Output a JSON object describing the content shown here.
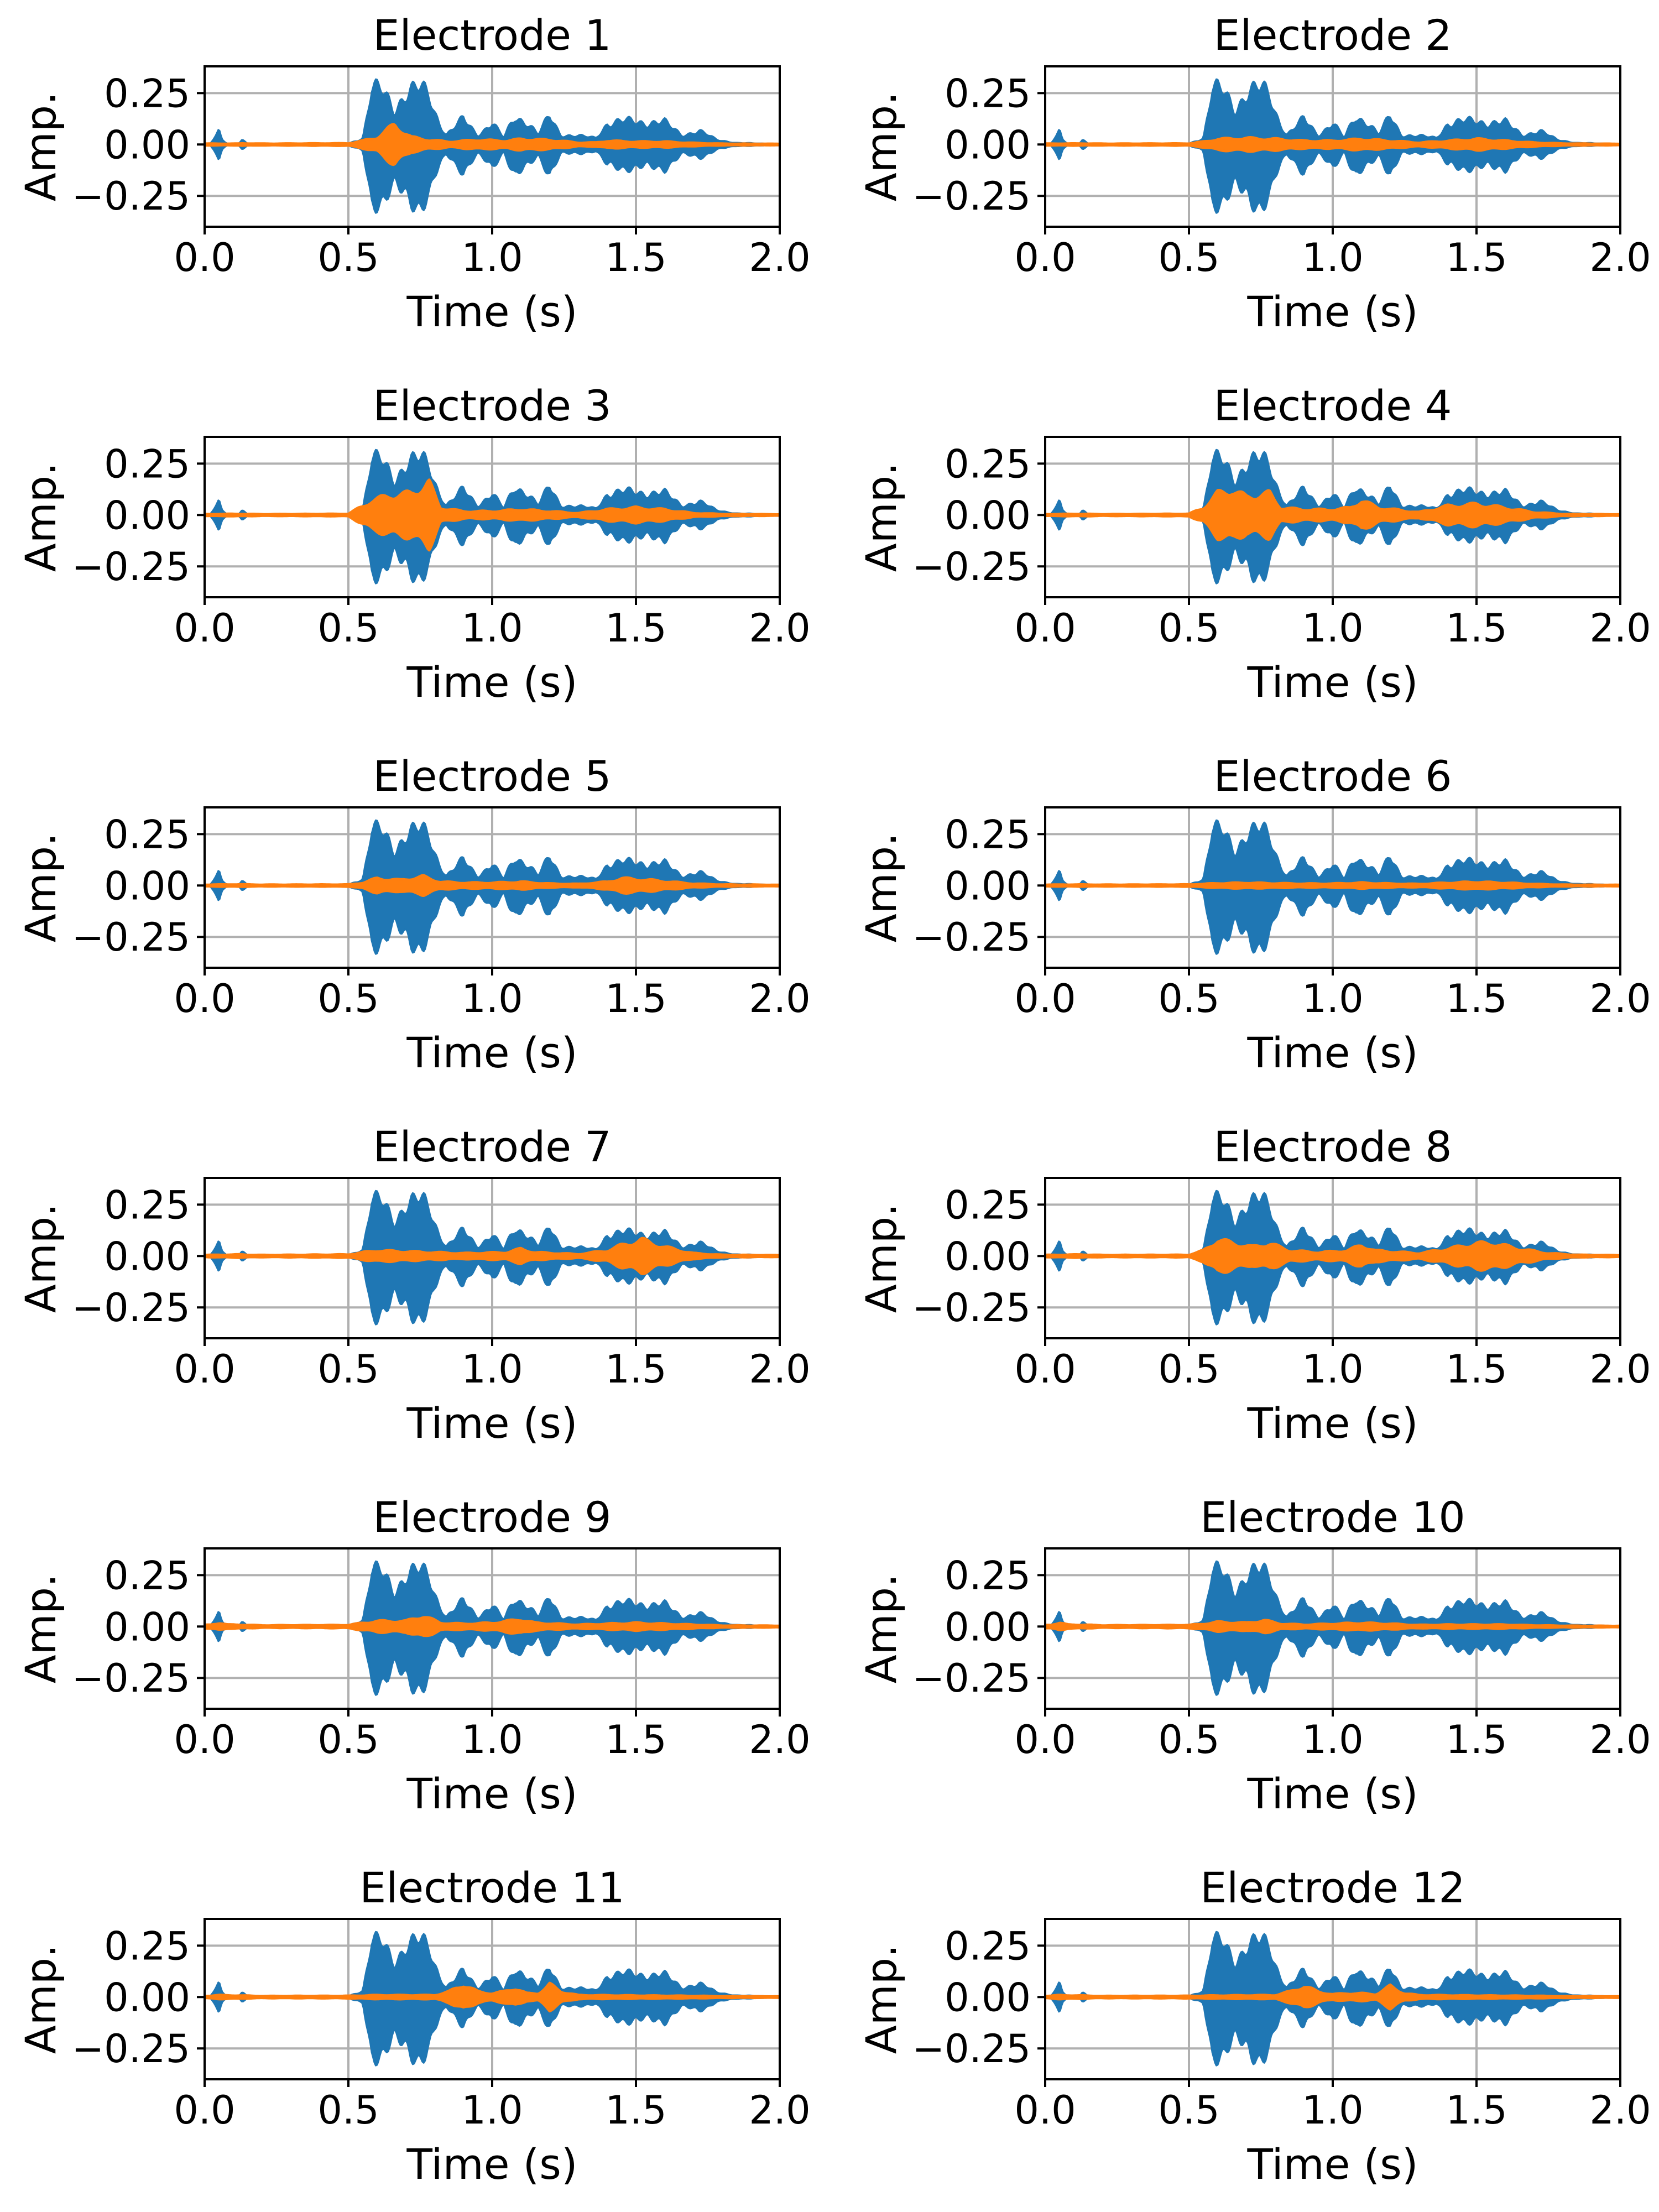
{
  "figure": {
    "colors": {
      "speech": "#1f77b4",
      "electrode": "#ff7f0e",
      "grid": "#b0b0b0",
      "axis": "#000000"
    }
  },
  "chart_data": {
    "type": "line",
    "layout": "6x2 grid of subplots",
    "shared_axes": {
      "xlabel": "Time (s)",
      "ylabel": "Amp.",
      "xlim": [
        0,
        2
      ],
      "ylim": [
        -0.4,
        0.38
      ],
      "xticks": [
        0,
        0.5,
        1,
        1.5,
        2
      ],
      "xtick_labels": [
        "0.0",
        "0.5",
        "1.0",
        "1.5",
        "2.0"
      ],
      "yticks": [
        0.25,
        0,
        -0.25
      ],
      "ytick_labels": [
        "0.25",
        "0.00",
        "−0.25"
      ],
      "grid": true
    },
    "speech_envelope": {
      "t": [
        0,
        0.02,
        0.05,
        0.06,
        0.08,
        0.1,
        0.12,
        0.13,
        0.15,
        0.3,
        0.5,
        0.55,
        0.58,
        0.62,
        0.66,
        0.7,
        0.74,
        0.78,
        0.8,
        0.84,
        0.9,
        0.95,
        1.0,
        1.04,
        1.08,
        1.12,
        1.16,
        1.2,
        1.24,
        1.3,
        1.36,
        1.4,
        1.5,
        1.6,
        1.66,
        1.72,
        1.78,
        1.85,
        2.0
      ],
      "pos": [
        0.004,
        0.005,
        0.08,
        0.03,
        0.005,
        0.006,
        0.01,
        0.03,
        0.005,
        0.005,
        0.006,
        0.04,
        0.33,
        0.31,
        0.22,
        0.32,
        0.33,
        0.3,
        0.2,
        0.06,
        0.15,
        0.06,
        0.13,
        0.04,
        0.17,
        0.14,
        0.06,
        0.17,
        0.06,
        0.05,
        0.04,
        0.13,
        0.14,
        0.13,
        0.06,
        0.08,
        0.03,
        0.01,
        0.004
      ],
      "neg": [
        -0.004,
        -0.005,
        -0.08,
        -0.03,
        -0.005,
        -0.006,
        -0.01,
        -0.03,
        -0.005,
        -0.005,
        -0.006,
        -0.04,
        -0.35,
        -0.32,
        -0.25,
        -0.33,
        -0.36,
        -0.3,
        -0.2,
        -0.06,
        -0.16,
        -0.06,
        -0.14,
        -0.04,
        -0.2,
        -0.14,
        -0.06,
        -0.18,
        -0.06,
        -0.05,
        -0.04,
        -0.13,
        -0.14,
        -0.14,
        -0.06,
        -0.08,
        -0.03,
        -0.01,
        -0.004
      ]
    },
    "subplots": [
      {
        "title": "Electrode 1",
        "t": [
          0,
          0.12,
          0.13,
          0.2,
          0.5,
          0.55,
          0.6,
          0.66,
          0.72,
          0.78,
          0.85,
          0.95,
          1.05,
          1.1,
          1.2,
          1.3,
          1.36,
          1.4,
          1.5,
          1.6,
          1.7,
          1.8,
          2.0
        ],
        "amp": [
          0.004,
          0.004,
          0.006,
          0.004,
          0.006,
          0.02,
          0.04,
          0.11,
          0.04,
          0.025,
          0.015,
          0.025,
          0.02,
          0.03,
          0.025,
          0.01,
          0.01,
          0.02,
          0.015,
          0.015,
          0.008,
          0.004,
          0.003
        ]
      },
      {
        "title": "Electrode 2",
        "t": [
          0,
          0.12,
          0.2,
          0.5,
          0.55,
          0.6,
          0.7,
          0.8,
          0.9,
          1.0,
          1.1,
          1.2,
          1.3,
          1.4,
          1.5,
          1.6,
          1.7,
          1.8,
          2.0
        ],
        "amp": [
          0.004,
          0.005,
          0.004,
          0.005,
          0.015,
          0.03,
          0.035,
          0.03,
          0.02,
          0.02,
          0.03,
          0.02,
          0.01,
          0.02,
          0.03,
          0.02,
          0.01,
          0.005,
          0.003
        ]
      },
      {
        "title": "Electrode 3",
        "t": [
          0,
          0.12,
          0.2,
          0.5,
          0.55,
          0.58,
          0.65,
          0.72,
          0.78,
          0.82,
          0.9,
          1.0,
          1.1,
          1.2,
          1.3,
          1.4,
          1.5,
          1.6,
          1.7,
          1.8,
          2.0
        ],
        "amp": [
          0.004,
          0.006,
          0.004,
          0.006,
          0.05,
          0.08,
          0.11,
          0.12,
          0.18,
          0.04,
          0.02,
          0.02,
          0.03,
          0.02,
          0.01,
          0.03,
          0.04,
          0.03,
          0.01,
          0.005,
          0.003
        ]
      },
      {
        "title": "Electrode 4",
        "t": [
          0,
          0.12,
          0.2,
          0.5,
          0.55,
          0.6,
          0.65,
          0.7,
          0.78,
          0.82,
          0.9,
          1.0,
          1.06,
          1.1,
          1.16,
          1.3,
          1.4,
          1.5,
          1.6,
          1.7,
          1.8,
          2.0
        ],
        "amp": [
          0.004,
          0.006,
          0.004,
          0.006,
          0.04,
          0.12,
          0.14,
          0.1,
          0.12,
          0.04,
          0.03,
          0.03,
          0.04,
          0.08,
          0.04,
          0.015,
          0.05,
          0.06,
          0.04,
          0.015,
          0.005,
          0.003
        ]
      },
      {
        "title": "Electrode 5",
        "t": [
          0,
          0.12,
          0.2,
          0.5,
          0.55,
          0.6,
          0.68,
          0.76,
          0.82,
          0.9,
          1.0,
          1.1,
          1.2,
          1.3,
          1.4,
          1.45,
          1.55,
          1.7,
          1.8,
          2.0
        ],
        "amp": [
          0.004,
          0.006,
          0.004,
          0.005,
          0.015,
          0.04,
          0.03,
          0.05,
          0.02,
          0.015,
          0.015,
          0.02,
          0.01,
          0.008,
          0.02,
          0.04,
          0.03,
          0.01,
          0.005,
          0.003
        ]
      },
      {
        "title": "Electrode 6",
        "t": [
          0,
          0.12,
          0.2,
          0.5,
          0.6,
          0.7,
          0.8,
          0.9,
          1.0,
          1.1,
          1.2,
          1.3,
          1.4,
          1.5,
          1.6,
          1.7,
          1.8,
          2.0
        ],
        "amp": [
          0.004,
          0.005,
          0.004,
          0.005,
          0.012,
          0.015,
          0.012,
          0.01,
          0.01,
          0.015,
          0.01,
          0.008,
          0.015,
          0.02,
          0.015,
          0.008,
          0.004,
          0.003
        ]
      },
      {
        "title": "Electrode 7",
        "t": [
          0,
          0.12,
          0.2,
          0.5,
          0.55,
          0.6,
          0.7,
          0.8,
          0.9,
          1.05,
          1.1,
          1.15,
          1.3,
          1.4,
          1.45,
          1.52,
          1.6,
          1.7,
          1.8,
          2.0
        ],
        "amp": [
          0.005,
          0.008,
          0.005,
          0.008,
          0.02,
          0.03,
          0.025,
          0.02,
          0.015,
          0.02,
          0.04,
          0.02,
          0.01,
          0.03,
          0.06,
          0.09,
          0.05,
          0.015,
          0.006,
          0.004
        ]
      },
      {
        "title": "Electrode 8",
        "t": [
          0,
          0.12,
          0.2,
          0.5,
          0.55,
          0.6,
          0.66,
          0.72,
          0.78,
          0.85,
          0.95,
          1.05,
          1.1,
          1.15,
          1.3,
          1.4,
          1.5,
          1.56,
          1.65,
          1.75,
          1.85,
          2.0
        ],
        "amp": [
          0.005,
          0.008,
          0.005,
          0.006,
          0.03,
          0.09,
          0.07,
          0.05,
          0.07,
          0.03,
          0.02,
          0.03,
          0.06,
          0.03,
          0.015,
          0.04,
          0.07,
          0.07,
          0.04,
          0.015,
          0.006,
          0.004
        ]
      },
      {
        "title": "Electrode 9",
        "t": [
          0,
          0.02,
          0.05,
          0.08,
          0.12,
          0.2,
          0.5,
          0.55,
          0.6,
          0.7,
          0.76,
          0.82,
          0.9,
          1.0,
          1.1,
          1.15,
          1.3,
          1.4,
          1.5,
          1.6,
          1.7,
          1.8,
          2.0
        ],
        "amp": [
          0.008,
          0.01,
          0.02,
          0.01,
          0.01,
          0.006,
          0.008,
          0.02,
          0.03,
          0.03,
          0.06,
          0.02,
          0.015,
          0.02,
          0.04,
          0.02,
          0.01,
          0.015,
          0.02,
          0.015,
          0.01,
          0.005,
          0.004
        ]
      },
      {
        "title": "Electrode 10",
        "t": [
          0,
          0.02,
          0.05,
          0.08,
          0.12,
          0.2,
          0.5,
          0.55,
          0.6,
          0.7,
          0.76,
          0.82,
          0.9,
          1.0,
          1.1,
          1.2,
          1.3,
          1.4,
          1.5,
          1.6,
          1.7,
          1.8,
          2.0
        ],
        "amp": [
          0.008,
          0.01,
          0.02,
          0.01,
          0.01,
          0.006,
          0.008,
          0.015,
          0.025,
          0.02,
          0.035,
          0.015,
          0.01,
          0.015,
          0.02,
          0.015,
          0.008,
          0.01,
          0.01,
          0.01,
          0.006,
          0.004,
          0.003
        ]
      },
      {
        "title": "Electrode 11",
        "t": [
          0,
          0.05,
          0.12,
          0.2,
          0.5,
          0.6,
          0.8,
          0.85,
          0.9,
          0.95,
          1.0,
          1.04,
          1.08,
          1.12,
          1.16,
          1.2,
          1.24,
          1.3,
          1.5,
          1.7,
          1.8,
          2.0
        ],
        "amp": [
          0.005,
          0.01,
          0.008,
          0.005,
          0.006,
          0.01,
          0.01,
          0.03,
          0.07,
          0.03,
          0.02,
          0.03,
          0.05,
          0.02,
          0.02,
          0.07,
          0.03,
          0.01,
          0.008,
          0.006,
          0.004,
          0.003
        ]
      },
      {
        "title": "Electrode 12",
        "t": [
          0,
          0.05,
          0.12,
          0.2,
          0.5,
          0.6,
          0.8,
          0.85,
          0.9,
          0.95,
          1.0,
          1.05,
          1.1,
          1.15,
          1.2,
          1.25,
          1.3,
          1.5,
          1.7,
          1.8,
          2.0
        ],
        "amp": [
          0.005,
          0.01,
          0.008,
          0.005,
          0.006,
          0.008,
          0.01,
          0.03,
          0.06,
          0.03,
          0.015,
          0.02,
          0.02,
          0.015,
          0.06,
          0.02,
          0.01,
          0.008,
          0.006,
          0.004,
          0.003
        ]
      }
    ]
  }
}
